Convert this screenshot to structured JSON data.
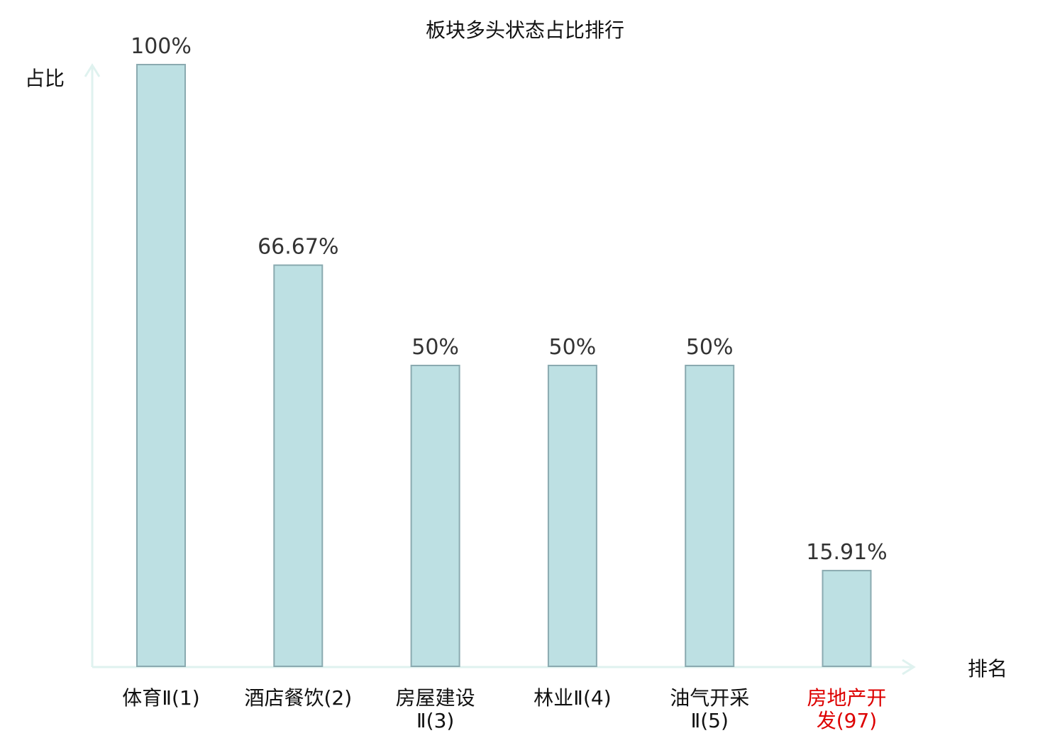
{
  "chart_data": {
    "type": "bar",
    "title": "板块多头状态占比排行",
    "ylabel": "占比",
    "xlabel": "排名",
    "ylim": [
      0,
      100
    ],
    "grid": false,
    "categories": [
      "体育Ⅱ(1)",
      "酒店餐饮(2)",
      "房屋建设Ⅱ(3)",
      "林业Ⅱ(4)",
      "油气开采Ⅱ(5)",
      "房地产开发(97)"
    ],
    "category_lines": [
      [
        "体育Ⅱ(1)"
      ],
      [
        "酒店餐饮(2)"
      ],
      [
        "房屋建设",
        "Ⅱ(3)"
      ],
      [
        "林业Ⅱ(4)"
      ],
      [
        "油气开采",
        "Ⅱ(5)"
      ],
      [
        "房地产开",
        "发(97)"
      ]
    ],
    "values": [
      100,
      66.67,
      50,
      50,
      50,
      15.91
    ],
    "value_labels": [
      "100%",
      "66.67%",
      "50%",
      "50%",
      "50%",
      "15.91%"
    ],
    "highlight_index": 5
  },
  "colors": {
    "bar_fill": "#bde0e3",
    "bar_stroke": "#8aaab0",
    "axis": "#dff2ef",
    "text": "#111111",
    "value_text": "#333333",
    "highlight": "#dd0000"
  }
}
